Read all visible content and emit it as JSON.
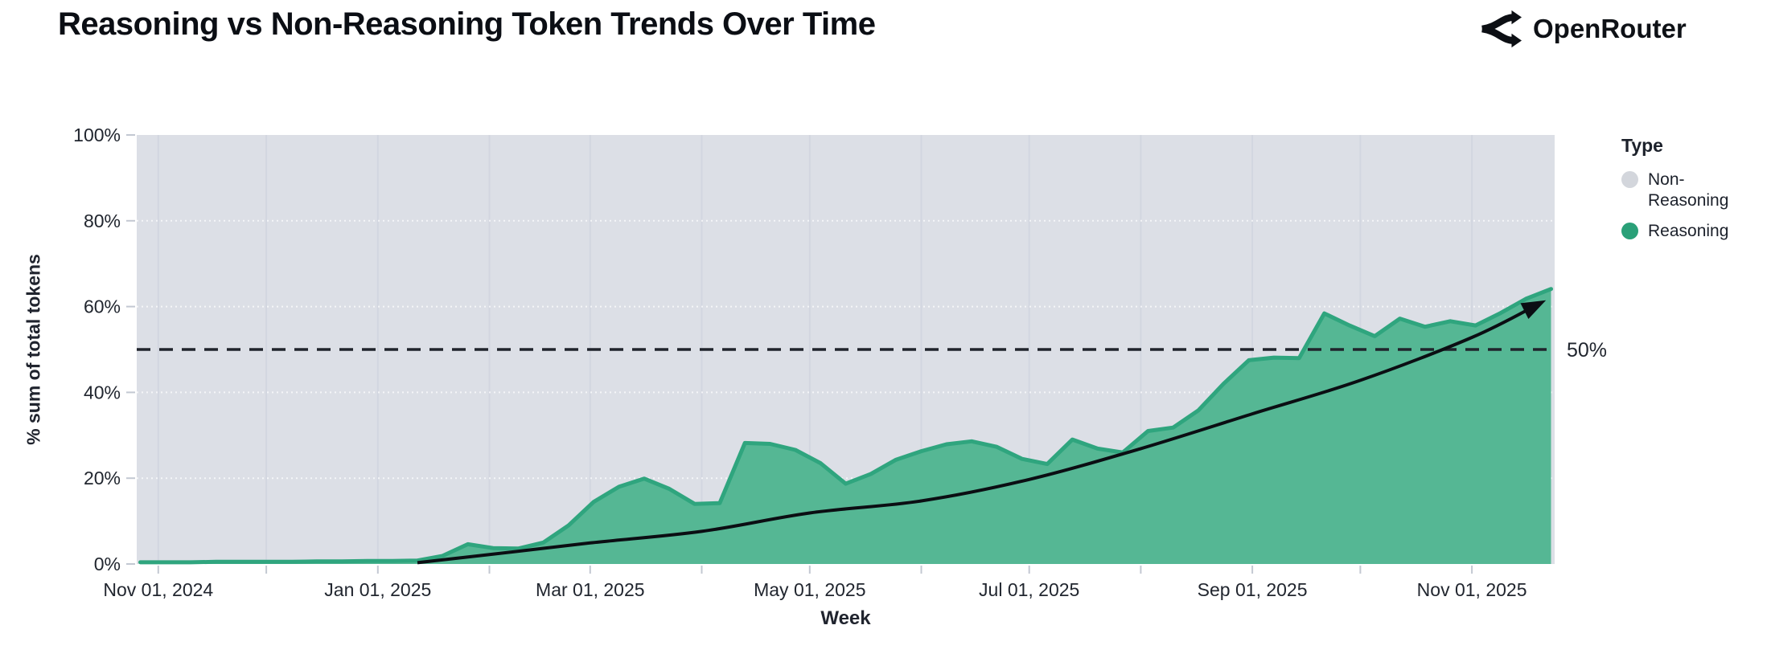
{
  "header": {
    "title": "Reasoning vs Non-Reasoning Token Trends Over Time",
    "brand": "OpenRouter"
  },
  "colors": {
    "plot_bg": "#dcdfe6",
    "grid_vertical": "#d2d6e0",
    "grid_horizontal": "#ffffff",
    "area_fill": "#55b794",
    "area_stroke": "#2fa57e",
    "trend": "#0b0e13",
    "dashed_line": "#20242c",
    "tick_mark": "#c3c8d2",
    "tick_text": "#21262f",
    "legend_nonreasoning": "#d3d6dc",
    "legend_reasoning": "#2aa078"
  },
  "chart_data": {
    "type": "area",
    "variant": "100% stacked share, weekly",
    "title": "Reasoning vs Non-Reasoning Token Trends Over Time",
    "xlabel": "Week",
    "ylabel": "% sum of total tokens",
    "ylim": [
      0,
      100
    ],
    "grid": true,
    "legend_position": "right",
    "x_domain": [
      "2024-10-26",
      "2025-11-24"
    ],
    "y_ticks": [
      {
        "value": 0,
        "label": "0%"
      },
      {
        "value": 20,
        "label": "20%"
      },
      {
        "value": 40,
        "label": "40%"
      },
      {
        "value": 60,
        "label": "60%"
      },
      {
        "value": 80,
        "label": "80%"
      },
      {
        "value": 100,
        "label": "100%"
      }
    ],
    "x_ticks": [
      {
        "date": "2024-11-01",
        "label": "Nov 01, 2024"
      },
      {
        "date": "2025-01-01",
        "label": "Jan 01, 2025"
      },
      {
        "date": "2025-03-01",
        "label": "Mar 01, 2025"
      },
      {
        "date": "2025-05-01",
        "label": "May 01, 2025"
      },
      {
        "date": "2025-07-01",
        "label": "Jul 01, 2025"
      },
      {
        "date": "2025-09-01",
        "label": "Sep 01, 2025"
      },
      {
        "date": "2025-11-01",
        "label": "Nov 01, 2025"
      }
    ],
    "x_minor_ticks": [
      "2024-12-01",
      "2025-02-01",
      "2025-04-01",
      "2025-06-01",
      "2025-08-01",
      "2025-10-01"
    ],
    "legend": {
      "title": "Type",
      "items": [
        {
          "label": "Non-Reasoning",
          "color": "#d3d6dc"
        },
        {
          "label": "Reasoning",
          "color": "#2aa078"
        }
      ]
    },
    "annotation_50pct": {
      "label": "50%",
      "value": 50
    },
    "series": [
      {
        "name": "Non-Reasoning",
        "role": "remainder-to-100%-rendered-as-background",
        "color": "#dcdfe6"
      },
      {
        "name": "Reasoning",
        "color": "#55b794",
        "unit": "% of total tokens",
        "points": [
          [
            "2024-10-27",
            0.4
          ],
          [
            "2024-11-03",
            0.4
          ],
          [
            "2024-11-10",
            0.4
          ],
          [
            "2024-11-17",
            0.5
          ],
          [
            "2024-11-24",
            0.5
          ],
          [
            "2024-12-01",
            0.5
          ],
          [
            "2024-12-08",
            0.5
          ],
          [
            "2024-12-15",
            0.6
          ],
          [
            "2024-12-22",
            0.6
          ],
          [
            "2024-12-29",
            0.7
          ],
          [
            "2025-01-05",
            0.7
          ],
          [
            "2025-01-12",
            0.8
          ],
          [
            "2025-01-19",
            1.9
          ],
          [
            "2025-01-26",
            4.6
          ],
          [
            "2025-02-02",
            3.7
          ],
          [
            "2025-02-09",
            3.6
          ],
          [
            "2025-02-16",
            5.0
          ],
          [
            "2025-02-23",
            9.0
          ],
          [
            "2025-03-02",
            14.5
          ],
          [
            "2025-03-09",
            18.0
          ],
          [
            "2025-03-16",
            19.9
          ],
          [
            "2025-03-23",
            17.5
          ],
          [
            "2025-03-30",
            14.0
          ],
          [
            "2025-04-06",
            14.2
          ],
          [
            "2025-04-13",
            28.2
          ],
          [
            "2025-04-20",
            28.0
          ],
          [
            "2025-04-27",
            26.6
          ],
          [
            "2025-05-04",
            23.5
          ],
          [
            "2025-05-11",
            18.7
          ],
          [
            "2025-05-18",
            21.0
          ],
          [
            "2025-05-25",
            24.3
          ],
          [
            "2025-06-01",
            26.3
          ],
          [
            "2025-06-08",
            27.9
          ],
          [
            "2025-06-15",
            28.6
          ],
          [
            "2025-06-22",
            27.3
          ],
          [
            "2025-06-29",
            24.5
          ],
          [
            "2025-07-06",
            23.3
          ],
          [
            "2025-07-13",
            29.0
          ],
          [
            "2025-07-20",
            26.9
          ],
          [
            "2025-07-27",
            26.0
          ],
          [
            "2025-08-03",
            31.0
          ],
          [
            "2025-08-10",
            31.8
          ],
          [
            "2025-08-17",
            35.8
          ],
          [
            "2025-08-24",
            42.0
          ],
          [
            "2025-08-31",
            47.5
          ],
          [
            "2025-09-07",
            48.1
          ],
          [
            "2025-09-14",
            48.0
          ],
          [
            "2025-09-21",
            58.4
          ],
          [
            "2025-09-28",
            55.6
          ],
          [
            "2025-10-05",
            53.1
          ],
          [
            "2025-10-12",
            57.2
          ],
          [
            "2025-10-19",
            55.3
          ],
          [
            "2025-10-26",
            56.6
          ],
          [
            "2025-11-02",
            55.6
          ],
          [
            "2025-11-09",
            58.5
          ],
          [
            "2025-11-16",
            61.8
          ],
          [
            "2025-11-23",
            64.1
          ]
        ]
      }
    ],
    "trend_arrow": {
      "description": "black curved arrow from ~0% mid-Jan 2025 to ~61% at right edge",
      "points": [
        [
          "2025-01-12",
          0.3
        ],
        [
          "2025-02-01",
          2.2
        ],
        [
          "2025-03-01",
          4.9
        ],
        [
          "2025-04-01",
          7.6
        ],
        [
          "2025-05-01",
          11.9
        ],
        [
          "2025-06-01",
          14.7
        ],
        [
          "2025-07-01",
          19.7
        ],
        [
          "2025-08-01",
          26.9
        ],
        [
          "2025-09-01",
          35.0
        ],
        [
          "2025-10-01",
          42.8
        ],
        [
          "2025-11-01",
          52.8
        ],
        [
          "2025-11-20",
          60.8
        ]
      ]
    }
  }
}
